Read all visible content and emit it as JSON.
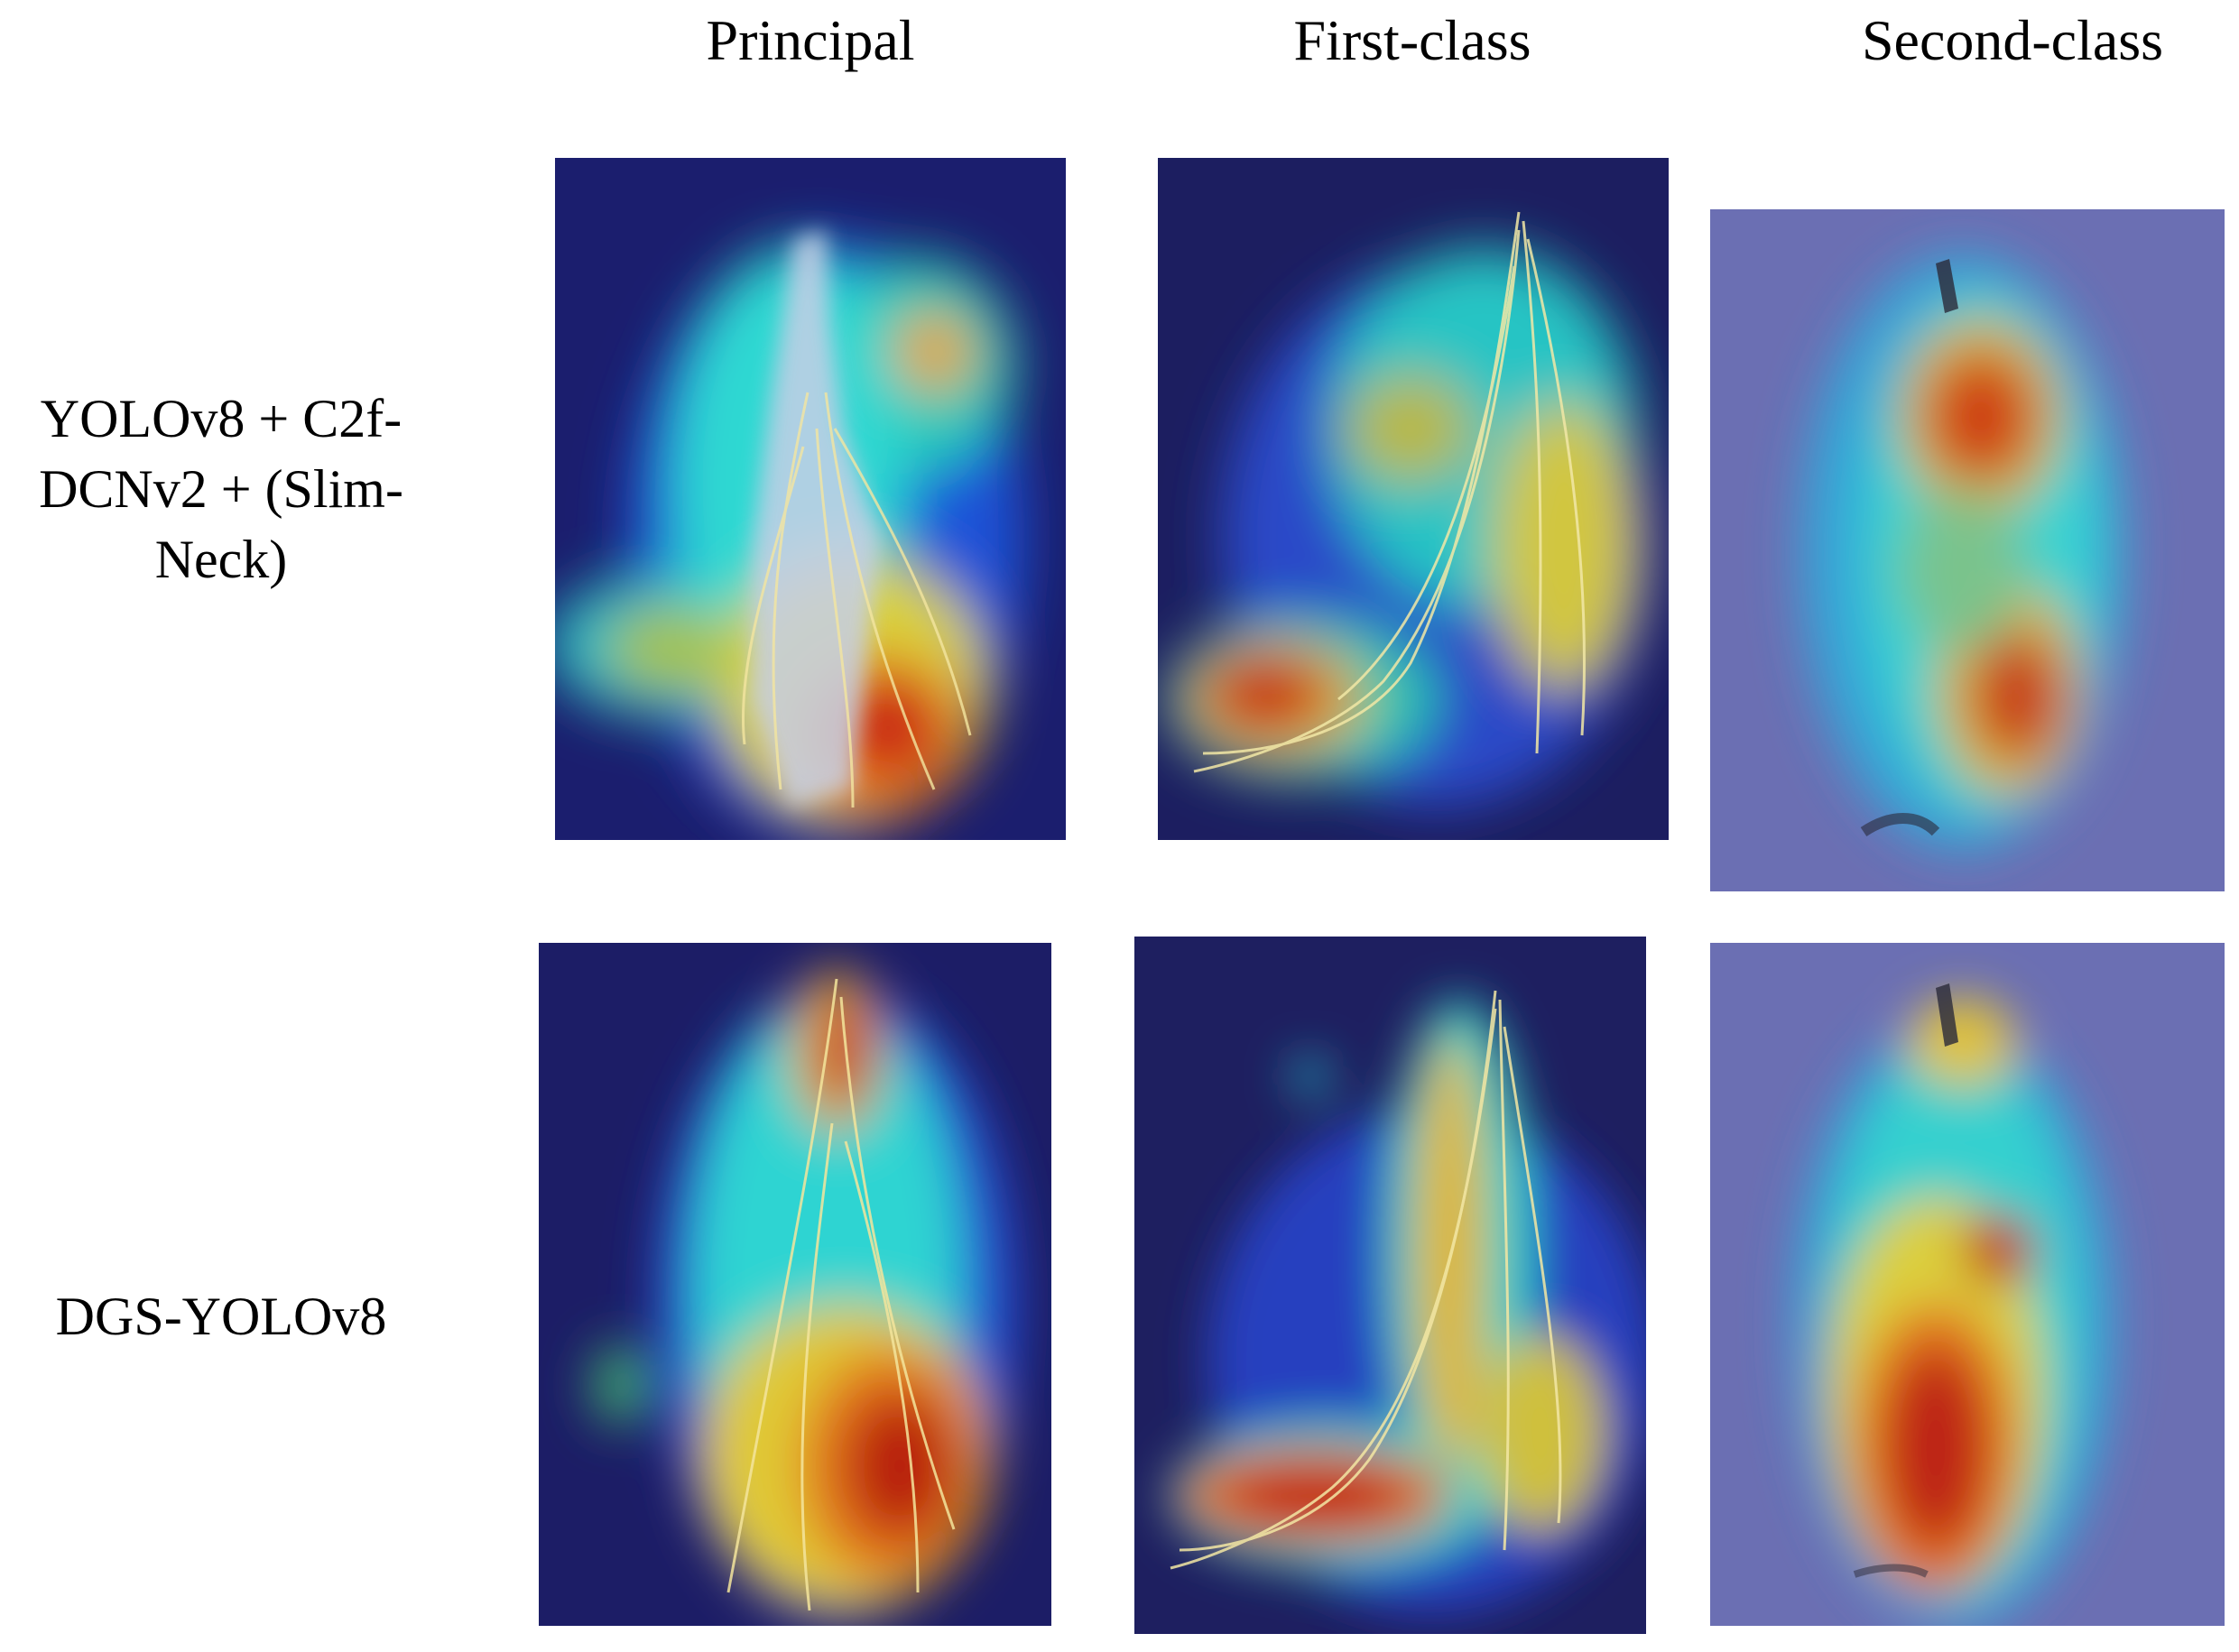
{
  "columns": [
    "Principal",
    "First-class",
    "Second-class"
  ],
  "rows": [
    {
      "label_lines": [
        "YOLOv8 + C2f-",
        "DCNv2 + (Slim-",
        "Neck)"
      ]
    },
    {
      "label_lines": [
        "DGS-YOLOv8"
      ]
    }
  ],
  "colors": {
    "background_dark": "#1b1e6e",
    "background_light": "#6b6fb3",
    "heat_low": "#1b3fd1",
    "heat_mid": "#25e0e0",
    "heat_high": "#e83a14"
  }
}
